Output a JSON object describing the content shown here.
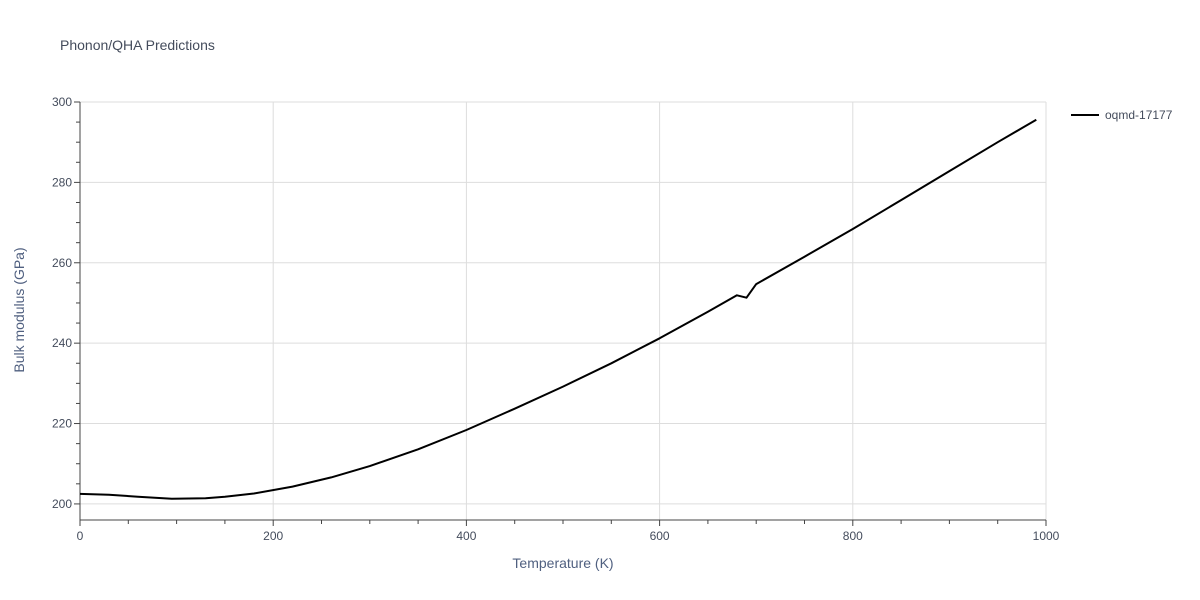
{
  "chart_data": {
    "type": "line",
    "title": "Phonon/QHA Predictions",
    "xlabel": "Temperature (K)",
    "ylabel": "Bulk modulus (GPa)",
    "xlim": [
      0,
      1000
    ],
    "ylim": [
      196,
      300
    ],
    "xticks": [
      0,
      200,
      400,
      600,
      800,
      1000
    ],
    "yticks": [
      200,
      220,
      240,
      260,
      280,
      300
    ],
    "grid": true,
    "legend_position": "top-right",
    "series": [
      {
        "name": "oqmd-17177",
        "color": "#000000",
        "x": [
          0,
          30,
          60,
          95,
          130,
          150,
          180,
          220,
          260,
          300,
          350,
          400,
          450,
          500,
          550,
          600,
          650,
          680,
          690,
          700,
          750,
          800,
          850,
          900,
          950,
          990
        ],
        "y": [
          202.5,
          202.3,
          201.8,
          201.3,
          201.4,
          201.8,
          202.6,
          204.3,
          206.6,
          209.4,
          213.6,
          218.4,
          223.7,
          229.2,
          235.0,
          241.2,
          247.8,
          251.9,
          251.3,
          254.7,
          261.5,
          268.4,
          275.6,
          282.8,
          290.0,
          295.6
        ]
      }
    ]
  }
}
